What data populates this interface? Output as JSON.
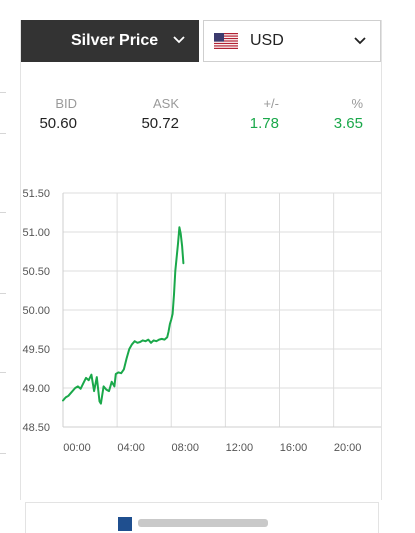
{
  "selectors": {
    "metal": "Silver Price",
    "currency": "USD",
    "currency_flag_icon": "us-flag-icon",
    "dropdown_icon": "chevron-down-icon"
  },
  "quote": {
    "bid_label": "BID",
    "bid_value": "50.60",
    "ask_label": "ASK",
    "ask_value": "50.72",
    "change_label": "+/-",
    "change_value": "1.78",
    "percent_label": "%",
    "percent_value": "3.65"
  },
  "colors": {
    "header_bg": "#333333",
    "line": "#1aa84a",
    "positive": "#1aa84a",
    "grid": "#dddddd"
  },
  "chart_data": {
    "type": "line",
    "xlabel": "",
    "ylabel": "",
    "xlim": [
      0,
      23.5
    ],
    "ylim": [
      48.5,
      51.5
    ],
    "x_ticks": [
      0,
      4,
      8,
      12,
      16,
      20
    ],
    "x_tick_labels": [
      "00:00",
      "04:00",
      "08:00",
      "12:00",
      "16:00",
      "20:00"
    ],
    "y_ticks": [
      48.5,
      49.0,
      49.5,
      50.0,
      50.5,
      51.0,
      51.5
    ],
    "y_tick_labels": [
      "48.50",
      "49.00",
      "49.50",
      "50.00",
      "50.50",
      "51.00",
      "51.50"
    ],
    "grid": true,
    "series": [
      {
        "x": [
          0.0,
          0.2,
          0.4,
          0.6,
          0.9,
          1.1,
          1.3,
          1.5,
          1.7,
          1.9,
          2.1,
          2.3,
          2.5,
          2.7,
          2.8,
          3.0,
          3.2,
          3.4,
          3.6,
          3.8,
          3.9,
          4.1,
          4.3,
          4.5,
          4.7,
          4.9,
          5.1,
          5.3,
          5.5,
          5.7,
          5.9,
          6.1,
          6.3,
          6.5,
          6.7,
          6.9,
          7.1,
          7.3,
          7.5,
          7.7,
          7.8,
          7.9,
          8.0,
          8.1,
          8.2,
          8.3,
          8.5,
          8.6,
          8.7,
          8.8,
          8.9
        ],
        "y": [
          48.84,
          48.88,
          48.9,
          48.94,
          49.0,
          49.02,
          48.99,
          49.06,
          49.13,
          49.1,
          49.17,
          48.96,
          49.14,
          48.83,
          48.8,
          49.02,
          48.98,
          48.96,
          49.08,
          49.02,
          49.18,
          49.2,
          49.19,
          49.24,
          49.38,
          49.5,
          49.56,
          49.6,
          49.58,
          49.59,
          49.61,
          49.6,
          49.62,
          49.58,
          49.61,
          49.6,
          49.62,
          49.63,
          49.62,
          49.65,
          49.72,
          49.82,
          49.88,
          49.95,
          50.2,
          50.5,
          50.85,
          51.06,
          50.98,
          50.82,
          50.6
        ]
      }
    ]
  }
}
